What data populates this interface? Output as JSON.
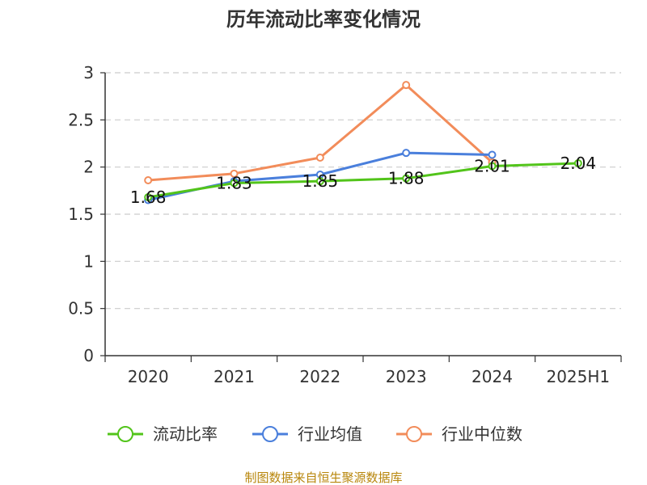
{
  "chart_data": {
    "type": "line",
    "title": "历年流动比率变化情况",
    "categories": [
      "2020",
      "2021",
      "2022",
      "2023",
      "2024",
      "2025H1"
    ],
    "ylim": [
      0,
      3
    ],
    "yticks": [
      "0",
      "0.5",
      "1",
      "1.5",
      "2",
      "2.5",
      "3"
    ],
    "ytick_values": [
      0,
      0.5,
      1,
      1.5,
      2,
      2.5,
      3
    ],
    "grid": true,
    "legend_position": "bottom",
    "series": [
      {
        "name": "流动比率",
        "color": "#52c41a",
        "values": [
          1.68,
          1.83,
          1.85,
          1.88,
          2.01,
          2.04
        ],
        "labels": [
          "1.68",
          "1.83",
          "1.85",
          "1.88",
          "2.01",
          "2.04"
        ]
      },
      {
        "name": "行业均值",
        "color": "#4a7fdc",
        "values": [
          1.65,
          1.85,
          1.92,
          2.15,
          2.13,
          null
        ]
      },
      {
        "name": "行业中位数",
        "color": "#f28c5a",
        "values": [
          1.86,
          1.93,
          2.1,
          2.87,
          2.05,
          null
        ]
      }
    ]
  },
  "footer": "制图数据来自恒生聚源数据库"
}
